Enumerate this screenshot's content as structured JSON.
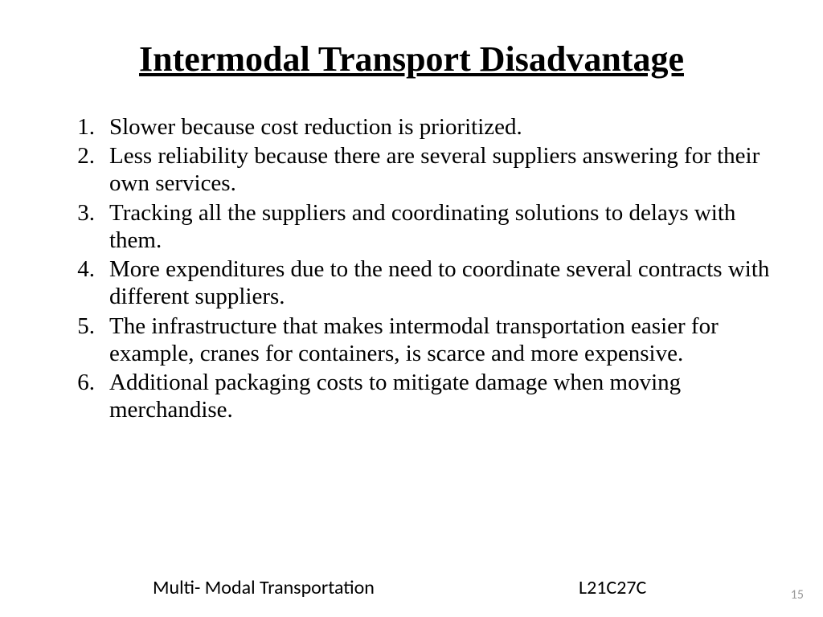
{
  "slide": {
    "title": "Intermodal Transport Disadvantage",
    "title_fontsize": 44,
    "title_weight": "700",
    "title_underline": true,
    "body_fontsize": 29,
    "body_line_height": 1.18,
    "font_family": "Times New Roman",
    "text_color": "#000000",
    "background_color": "#ffffff",
    "points": [
      "Slower because cost reduction is prioritized.",
      "Less reliability because there are several suppliers answering for their own services.",
      "Tracking all the suppliers and coordinating solutions to delays with them.",
      "More expenditures due to the need to coordinate several contracts with different suppliers.",
      "The infrastructure that makes intermodal transportation easier for example, cranes for containers, is scarce and more expensive.",
      "Additional packaging costs to mitigate damage when moving merchandise."
    ]
  },
  "footer": {
    "left_text": "Multi- Modal Transportation",
    "mid_text": "L21C27C",
    "page_number": "15",
    "font_family": "Calibri",
    "footer_fontsize": 24,
    "pagenum_fontsize": 16,
    "pagenum_color": "#9a9a9a"
  }
}
